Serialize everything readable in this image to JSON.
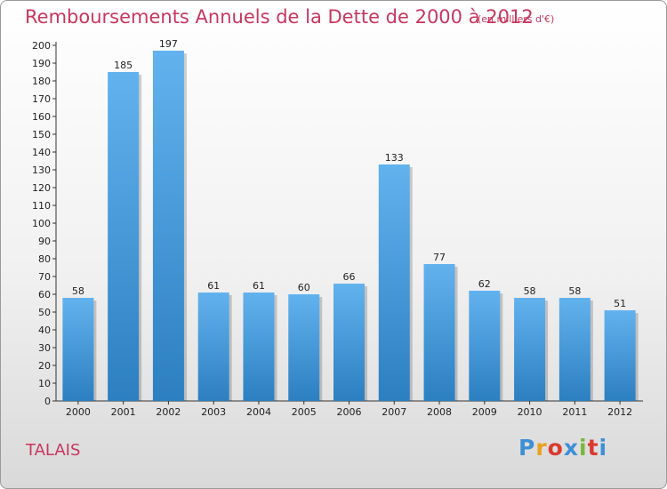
{
  "header": {
    "title": "Remboursements Annuels de la Dette de 2000 à 2012",
    "subtitle": "(en milliers d'€)"
  },
  "footer": {
    "commune": "TALAIS",
    "logo_text": "Proxiti"
  },
  "colors": {
    "title": "#c8365f",
    "bar_top": "#62b2ee",
    "bar_bottom": "#2c7fc0",
    "logo": [
      "#3d8fd6",
      "#e8a21c",
      "#d93a2e",
      "#3d8fd6",
      "#7bb73b",
      "#d93a2e",
      "#3d8fd6"
    ]
  },
  "chart_data": {
    "type": "bar",
    "categories": [
      "2000",
      "2001",
      "2002",
      "2003",
      "2004",
      "2005",
      "2006",
      "2007",
      "2008",
      "2009",
      "2010",
      "2011",
      "2012"
    ],
    "values": [
      58,
      185,
      197,
      61,
      61,
      60,
      66,
      133,
      77,
      62,
      58,
      58,
      51
    ],
    "title": "Remboursements Annuels de la Dette de 2000 à 2012",
    "subtitle": "(en milliers d'€)",
    "xlabel": "",
    "ylabel": "",
    "ylim": [
      0,
      200
    ],
    "yticks": [
      0,
      10,
      20,
      30,
      40,
      50,
      60,
      70,
      80,
      90,
      100,
      110,
      120,
      130,
      140,
      150,
      160,
      170,
      180,
      190,
      200
    ],
    "grid": false,
    "legend": "none"
  }
}
